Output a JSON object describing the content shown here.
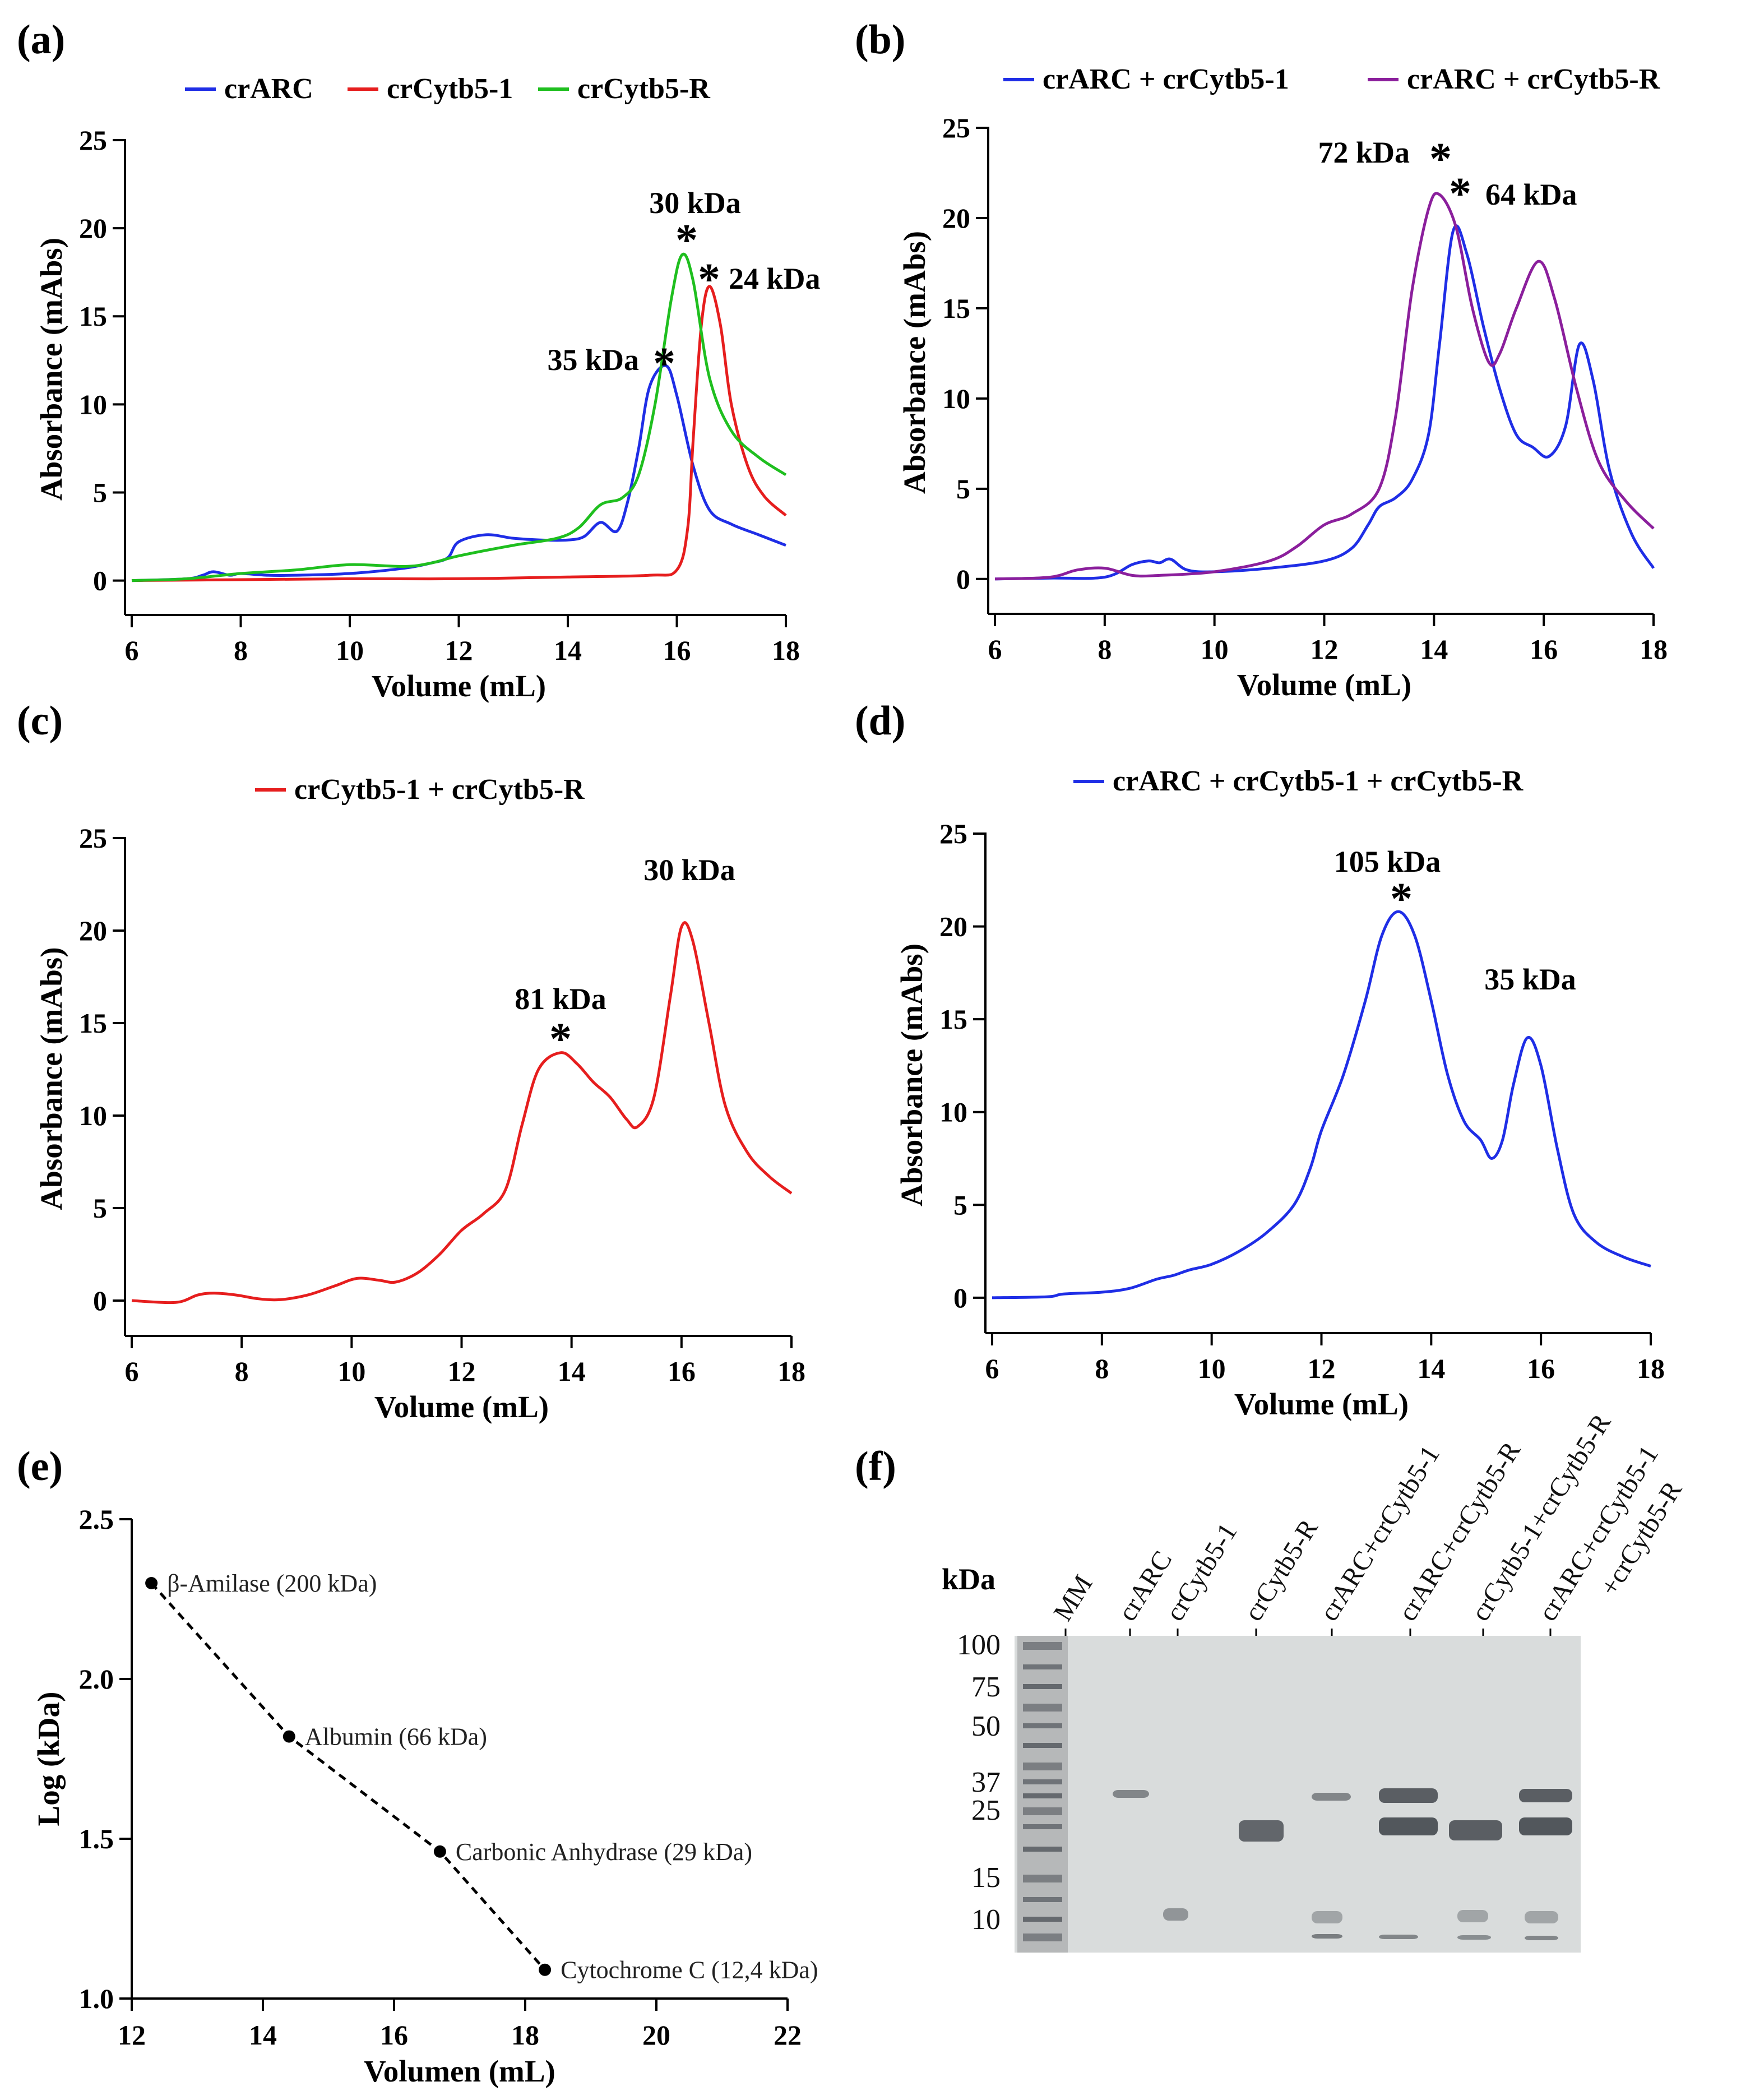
{
  "chart_data": [
    {
      "panel": "(a)",
      "type": "line",
      "xlabel": "Volume (mL)",
      "ylabel": "Absorbance (mAbs)",
      "xlim": [
        6,
        18
      ],
      "ylim": [
        -1,
        25
      ],
      "xticks": [
        "6",
        "8",
        "10",
        "12",
        "14",
        "16",
        "18"
      ],
      "yticks": [
        "0",
        "5",
        "10",
        "15",
        "20",
        "25"
      ],
      "series": [
        {
          "name": "crARC",
          "color": "#1f2ee6",
          "x": [
            6,
            7,
            7.3,
            7.5,
            7.8,
            8,
            8.5,
            9,
            10,
            11,
            11.5,
            11.8,
            12,
            12.5,
            13,
            13.5,
            14,
            14.3,
            14.6,
            14.9,
            15.1,
            15.3,
            15.5,
            15.8,
            16,
            16.3,
            16.6,
            17,
            17.5,
            18
          ],
          "values": [
            0,
            0.1,
            0.3,
            0.5,
            0.3,
            0.4,
            0.3,
            0.3,
            0.4,
            0.7,
            1.0,
            1.3,
            2.2,
            2.6,
            2.4,
            2.3,
            2.3,
            2.5,
            3.3,
            2.8,
            4.5,
            7.5,
            11.0,
            12.2,
            10.5,
            6.5,
            4.0,
            3.2,
            2.6,
            2.0
          ]
        },
        {
          "name": "crCytb5-1",
          "color": "#e61e1e",
          "x": [
            6,
            8,
            10,
            12,
            14,
            15.5,
            16,
            16.2,
            16.3,
            16.45,
            16.6,
            16.8,
            17,
            17.3,
            17.6,
            18
          ],
          "values": [
            0,
            0.05,
            0.1,
            0.1,
            0.2,
            0.3,
            0.6,
            3.0,
            8.0,
            14.5,
            16.7,
            14.5,
            10.0,
            6.5,
            4.8,
            3.7
          ]
        },
        {
          "name": "crCytb5-R",
          "color": "#1fbf1f",
          "x": [
            6,
            7,
            8,
            9,
            10,
            11,
            11.5,
            12,
            13,
            13.8,
            14.2,
            14.6,
            15,
            15.3,
            15.6,
            15.9,
            16.1,
            16.3,
            16.6,
            17,
            17.5,
            18
          ],
          "values": [
            0,
            0.1,
            0.4,
            0.6,
            0.9,
            0.8,
            1.0,
            1.4,
            2.0,
            2.4,
            3.0,
            4.3,
            4.7,
            6.0,
            10.0,
            16.0,
            18.5,
            17.0,
            11.5,
            8.5,
            7.0,
            6.0
          ]
        }
      ],
      "annotations": [
        {
          "text": "30 kDa",
          "star": true,
          "x": 16.0,
          "y": 18.5
        },
        {
          "text": "24 kDa",
          "star": true,
          "x": 16.55,
          "y": 16.7
        },
        {
          "text": "35 kDa",
          "star": true,
          "x": 15.8,
          "y": 12.2
        }
      ]
    },
    {
      "panel": "(b)",
      "type": "line",
      "xlabel": "Volume (mL)",
      "ylabel": "Absorbance (mAbs)",
      "xlim": [
        6,
        18
      ],
      "ylim": [
        -1,
        25
      ],
      "xticks": [
        "6",
        "8",
        "10",
        "12",
        "14",
        "16",
        "18"
      ],
      "yticks": [
        "0",
        "5",
        "10",
        "15",
        "20",
        "25"
      ],
      "series": [
        {
          "name": "crARC + crCytb5-1",
          "color": "#1f2ee6",
          "x": [
            6,
            7,
            8,
            8.5,
            8.8,
            9,
            9.2,
            9.5,
            10,
            11,
            12,
            12.5,
            12.8,
            13,
            13.3,
            13.6,
            13.9,
            14.1,
            14.35,
            14.6,
            14.9,
            15.2,
            15.5,
            15.8,
            16.1,
            16.4,
            16.65,
            16.9,
            17.2,
            17.6,
            18
          ],
          "values": [
            0,
            0.05,
            0.1,
            0.8,
            1.0,
            0.9,
            1.1,
            0.5,
            0.4,
            0.6,
            1.0,
            1.7,
            3.0,
            4.0,
            4.5,
            5.5,
            8.0,
            13.0,
            19.3,
            18.0,
            14.0,
            10.5,
            8.0,
            7.3,
            6.8,
            8.5,
            13.0,
            11.0,
            6.0,
            2.5,
            0.6
          ]
        },
        {
          "name": "crARC + crCytb5-R",
          "color": "#8b1f9c",
          "x": [
            6,
            7,
            7.5,
            8,
            8.5,
            9,
            10,
            11,
            11.5,
            12,
            12.5,
            13,
            13.3,
            13.6,
            13.9,
            14.1,
            14.4,
            14.7,
            15,
            15.2,
            15.5,
            15.9,
            16.2,
            16.6,
            17,
            17.5,
            18
          ],
          "values": [
            0,
            0.1,
            0.5,
            0.6,
            0.2,
            0.2,
            0.4,
            1.0,
            1.8,
            3.0,
            3.6,
            5.0,
            9.0,
            16.0,
            20.5,
            21.3,
            19.5,
            15.0,
            12.0,
            12.5,
            15.0,
            17.6,
            15.5,
            10.5,
            6.5,
            4.3,
            2.8
          ]
        }
      ],
      "annotations": [
        {
          "text": "72 kDa",
          "star": true,
          "x": 14.05,
          "y": 21.3
        },
        {
          "text": "64 kDa",
          "star": true,
          "x": 14.4,
          "y": 19.3
        }
      ]
    },
    {
      "panel": "(c)",
      "type": "line",
      "xlabel": "Volume (mL)",
      "ylabel": "Absorbance (mAbs)",
      "xlim": [
        6,
        18
      ],
      "ylim": [
        -1,
        25
      ],
      "xticks": [
        "6",
        "8",
        "10",
        "12",
        "14",
        "16",
        "18"
      ],
      "yticks": [
        "0",
        "5",
        "10",
        "15",
        "20",
        "25"
      ],
      "series": [
        {
          "name": "crCytb5-1 + crCytb5-R",
          "color": "#e61e1e",
          "x": [
            6,
            6.8,
            7.2,
            7.5,
            7.9,
            8.3,
            8.7,
            9.2,
            9.7,
            10.1,
            10.5,
            10.8,
            11.2,
            11.6,
            12,
            12.4,
            12.8,
            13.1,
            13.4,
            13.8,
            14.1,
            14.4,
            14.7,
            15,
            15.2,
            15.5,
            15.8,
            16,
            16.2,
            16.5,
            16.8,
            17.2,
            17.6,
            18
          ],
          "values": [
            0,
            -0.1,
            0.3,
            0.4,
            0.3,
            0.1,
            0.05,
            0.3,
            0.8,
            1.2,
            1.1,
            1.0,
            1.5,
            2.5,
            3.8,
            4.7,
            6.0,
            9.5,
            12.5,
            13.4,
            12.8,
            11.8,
            11.0,
            9.8,
            9.4,
            11.0,
            16.5,
            20.2,
            19.5,
            15.0,
            10.5,
            8.0,
            6.7,
            5.8
          ]
        }
      ],
      "annotations": [
        {
          "text": "81 kDa",
          "star": true,
          "x": 13.8,
          "y": 13.4
        },
        {
          "text": "30 kDa",
          "star": false,
          "x": 16.0,
          "y": 22.0
        }
      ]
    },
    {
      "panel": "(d)",
      "type": "line",
      "xlabel": "Volume (mL)",
      "ylabel": "Absorbance (mAbs)",
      "xlim": [
        6,
        18
      ],
      "ylim": [
        -1,
        25
      ],
      "xticks": [
        "6",
        "8",
        "10",
        "12",
        "14",
        "16",
        "18"
      ],
      "yticks": [
        "0",
        "5",
        "10",
        "15",
        "20",
        "25"
      ],
      "series": [
        {
          "name": "crARC + crCytb5-1 + crCytb5-R",
          "color": "#1f2ee6",
          "x": [
            6,
            7,
            7.3,
            8,
            8.5,
            9,
            9.3,
            9.6,
            10,
            10.5,
            11,
            11.5,
            11.8,
            12,
            12.4,
            12.8,
            13.1,
            13.4,
            13.7,
            14,
            14.3,
            14.6,
            14.9,
            15.1,
            15.3,
            15.5,
            15.75,
            16,
            16.3,
            16.6,
            17,
            17.5,
            18
          ],
          "values": [
            0,
            0.05,
            0.2,
            0.3,
            0.5,
            1.0,
            1.2,
            1.5,
            1.8,
            2.5,
            3.5,
            5.0,
            7.0,
            9.0,
            12.0,
            16.0,
            19.5,
            20.8,
            19.5,
            16.0,
            12.0,
            9.5,
            8.5,
            7.5,
            8.5,
            11.5,
            14.0,
            12.5,
            8.0,
            4.5,
            3.0,
            2.2,
            1.7
          ]
        }
      ],
      "annotations": [
        {
          "text": "105 kDa",
          "star": true,
          "x": 13.4,
          "y": 20.8
        },
        {
          "text": "35 kDa",
          "star": false,
          "x": 15.8,
          "y": 16.0
        }
      ]
    },
    {
      "panel": "(e)",
      "type": "scatter",
      "xlabel": "Volumen (mL)",
      "ylabel": "Log (kDa)",
      "xlim": [
        12,
        22
      ],
      "ylim": [
        1.0,
        2.5
      ],
      "xticks": [
        "12",
        "14",
        "16",
        "18",
        "20",
        "22"
      ],
      "yticks": [
        "1.0",
        "1.5",
        "2.0",
        "2.5"
      ],
      "points": [
        {
          "label": "β-Amilase (200 kDa)",
          "x": 12.3,
          "y": 2.3
        },
        {
          "label": "Albumin (66 kDa)",
          "x": 14.4,
          "y": 1.82
        },
        {
          "label": "Carbonic Anhydrase (29 kDa)",
          "x": 16.7,
          "y": 1.46
        },
        {
          "label": "Cytochrome C (12,4 kDa)",
          "x": 18.3,
          "y": 1.09
        }
      ]
    }
  ],
  "legends": {
    "a": [
      "crARC",
      "crCytb5-1",
      "crCytb5-R"
    ],
    "b": [
      "crARC + crCytb5-1",
      "crARC + crCytb5-R"
    ],
    "c": [
      "crCytb5-1 + crCytb5-R"
    ],
    "d": [
      "crARC + crCytb5-1 + crCytb5-R"
    ]
  },
  "gel": {
    "panel": "(f)",
    "kda_label": "kDa",
    "markers": [
      "100",
      "75",
      "50",
      "37",
      "25",
      "15",
      "10"
    ],
    "lanes": [
      "MM",
      "crARC",
      "crCytb5-1",
      "crCytb5-R",
      "crARC+crCytb5-1",
      "crARC+crCytb5-R",
      "crCytb5-1+crCytb5-R",
      "crARC+crCytb5-1",
      "+crCytb5-R"
    ]
  },
  "colors": {
    "blue": "#1f2ee6",
    "red": "#e61e1e",
    "green": "#1fbf1f",
    "purple": "#8b1f9c"
  }
}
